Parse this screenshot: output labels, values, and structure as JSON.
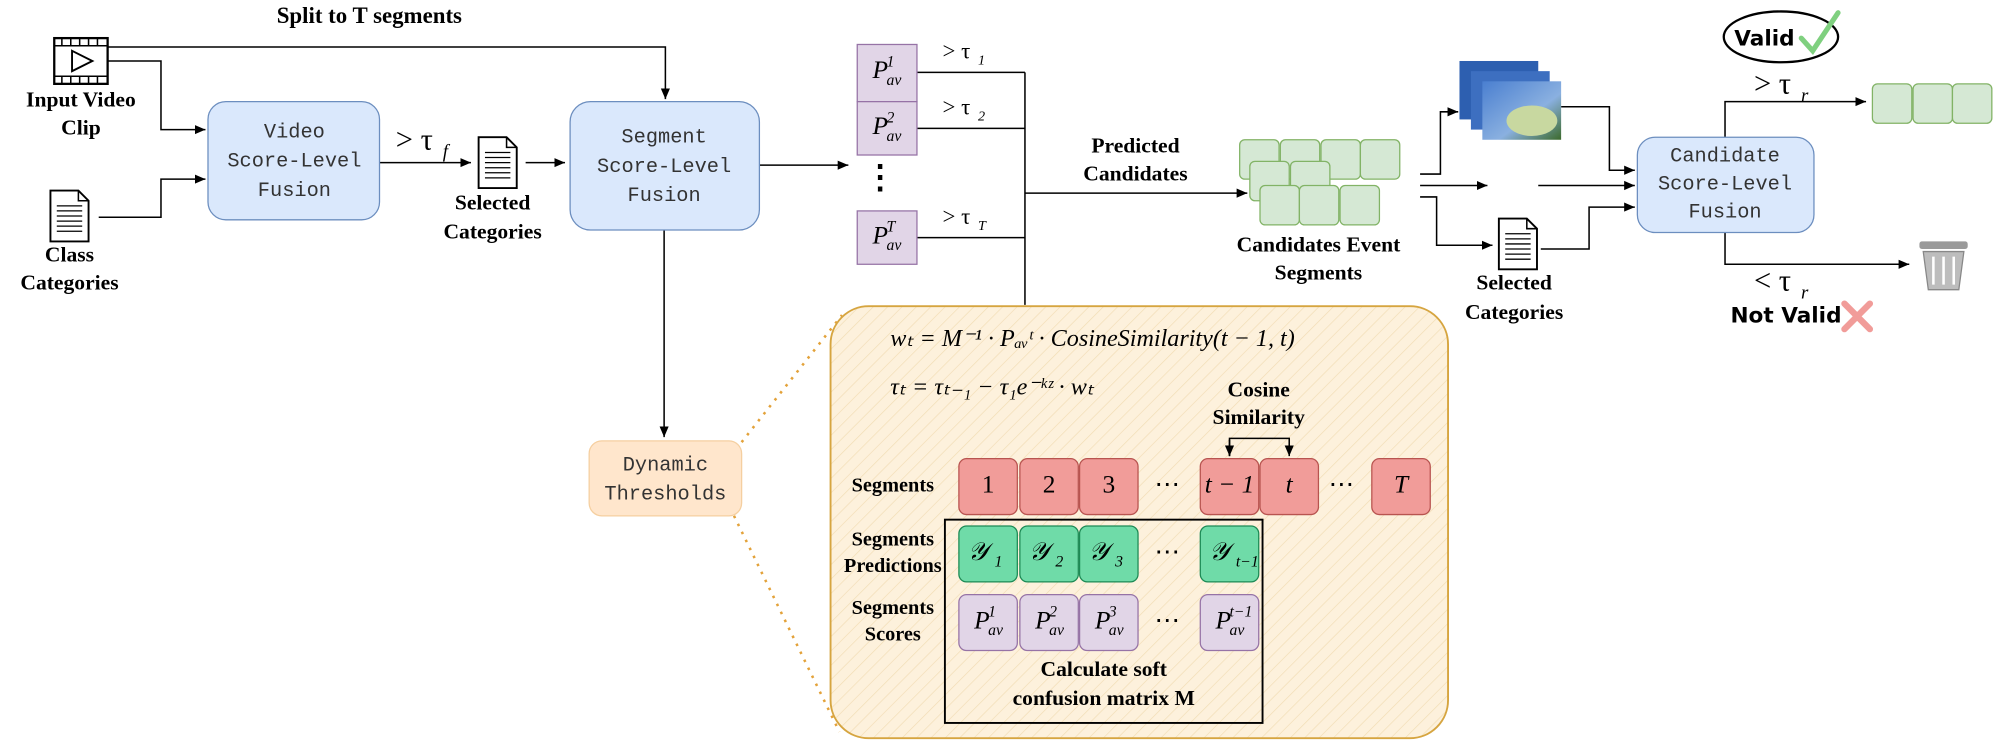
{
  "title": "Split to T segments",
  "input": {
    "video": [
      "Input Video",
      "Clip"
    ],
    "classes": [
      "Class",
      "Categories"
    ]
  },
  "video_fusion": [
    "Video",
    "Score-Level",
    "Fusion"
  ],
  "video_threshold": {
    "base": "> τ",
    "sub": "f"
  },
  "selected_1": [
    "Selected",
    "Categories"
  ],
  "segment_fusion": [
    "Segment",
    "Score-Level",
    "Fusion"
  ],
  "dynamic_thresholds": [
    "Dynamic",
    "Thresholds"
  ],
  "segment_scores": [
    {
      "score": {
        "base": "P",
        "sup": "1",
        "sub": "av"
      },
      "threshold": {
        "base": "> τ",
        "sub": "1"
      }
    },
    {
      "score": {
        "base": "P",
        "sup": "2",
        "sub": "av"
      },
      "threshold": {
        "base": "> τ",
        "sub": "2"
      }
    },
    {
      "score": {
        "base": "P",
        "sup": "T",
        "sub": "av"
      },
      "threshold": {
        "base": "> τ",
        "sub": "T"
      }
    }
  ],
  "vertical_ellipsis": "⋮",
  "predicted": [
    "Predicted",
    "Candidates"
  ],
  "candidates": [
    "Candidates Event",
    "Segments"
  ],
  "selected_2": [
    "Selected",
    "Categories"
  ],
  "candidate_fusion": [
    "Candidate",
    "Score-Level",
    "Fusion"
  ],
  "valid": {
    "threshold": {
      "base": "> τ",
      "sub": "r"
    },
    "label": "Valid"
  },
  "not_valid": {
    "threshold": {
      "base": "< τ",
      "sub": "r"
    },
    "label": "Not Valid"
  },
  "inset": {
    "equations": [
      "wₜ = M⁻¹ · Pₐᵥᵗ · CosineSimilarity(t − 1, t)",
      "τₜ = τₜ₋₁ − τ₁e⁻ᵏᶻ · wₜ"
    ],
    "cosine": [
      "Cosine",
      "Similarity"
    ],
    "segments": {
      "label": [
        "Segments"
      ],
      "cells": [
        {
          "base": "1"
        },
        {
          "base": "2"
        },
        {
          "base": "3"
        },
        {
          "base": "⋯"
        },
        {
          "base": "t − 1"
        },
        {
          "base": "t"
        },
        {
          "base": "⋯"
        },
        {
          "base": "T"
        }
      ]
    },
    "predictions": {
      "label": [
        "Segments",
        "Predictions"
      ],
      "cells": [
        {
          "base": "𝒴",
          "sub": "1"
        },
        {
          "base": "𝒴",
          "sub": "2"
        },
        {
          "base": "𝒴",
          "sub": "3"
        },
        {
          "base": "⋯"
        },
        {
          "base": "𝒴",
          "sub": "t−1"
        }
      ]
    },
    "scores": {
      "label": [
        "Segments",
        "Scores"
      ],
      "cells": [
        {
          "base": "P",
          "sup": "1",
          "sub": "av"
        },
        {
          "base": "P",
          "sup": "2",
          "sub": "av"
        },
        {
          "base": "P",
          "sup": "3",
          "sub": "av"
        },
        {
          "base": "⋯"
        },
        {
          "base": "P",
          "sup": "t−1",
          "sub": "av"
        }
      ]
    },
    "confusion": [
      "Calculate soft",
      "confusion matrix M"
    ]
  }
}
